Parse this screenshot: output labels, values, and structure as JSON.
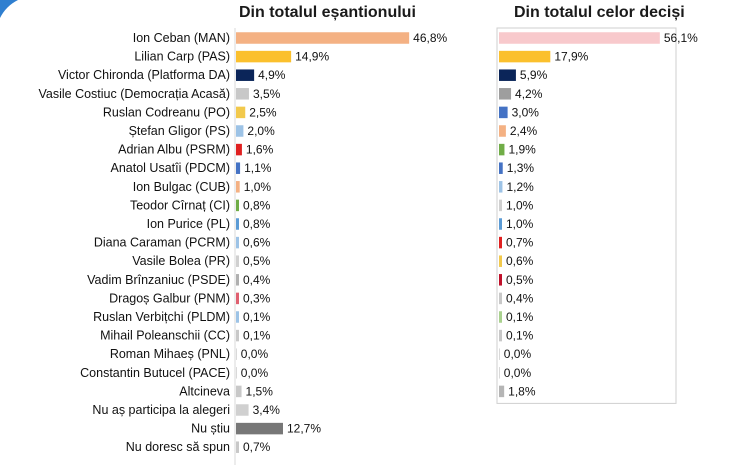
{
  "chart_data": [
    {
      "type": "bar",
      "orientation": "horizontal",
      "title": "Din totalul eșantionului",
      "xlim": [
        0,
        50
      ],
      "grid": false,
      "categories": [
        "Ion Ceban (MAN)",
        "Lilian Carp (PAS)",
        "Victor Chironda (Platforma DA)",
        "Vasile Costiuc (Democrația Acasă)",
        "Ruslan Codreanu (PO)",
        "Ștefan Gligor  (PS)",
        "Adrian Albu (PSRM)",
        "Anatol Usatîi (PDCM)",
        "Ion Bulgac (CUB)",
        "Teodor Cîrnaț (CI)",
        "Ion Purice (PL)",
        "Diana Caraman (PCRM)",
        "Vasile Bolea (PR)",
        "Vadim Brînzaniuc (PSDE)",
        "Dragoș Galbur (PNM)",
        "Ruslan Verbițchi (PLDM)",
        "Mihail Poleanschii (CC)",
        "Roman Mihaeș (PNL)",
        "Constantin Butucel  (PACE)",
        "Altcineva",
        "Nu aș participa la alegeri",
        "Nu știu",
        "Nu doresc să spun"
      ],
      "values": [
        46.8,
        14.9,
        4.9,
        3.5,
        2.5,
        2.0,
        1.6,
        1.1,
        1.0,
        0.8,
        0.8,
        0.6,
        0.5,
        0.4,
        0.3,
        0.1,
        0.1,
        0.0,
        0.0,
        1.5,
        3.4,
        12.7,
        0.7
      ],
      "value_labels": [
        "46,8%",
        "14,9%",
        "4,9%",
        "3,5%",
        "2,5%",
        "2,0%",
        "1,6%",
        "1,1%",
        "1,0%",
        "0,8%",
        "0,8%",
        "0,6%",
        "0,5%",
        "0,4%",
        "0,3%",
        "0,1%",
        "0,1%",
        "0,0%",
        "0,0%",
        "1,5%",
        "3,4%",
        "12,7%",
        "0,7%"
      ],
      "colors": [
        "#f4b183",
        "#fbc02d",
        "#0b2559",
        "#c8c8c8",
        "#f2c94c",
        "#9dc3e6",
        "#e02020",
        "#4472c4",
        "#f4b183",
        "#70ad47",
        "#5b9bd5",
        "#9dc3e6",
        "#d0d0d0",
        "#b0b0b0",
        "#e06070",
        "#9dc3e6",
        "#c8c8c8",
        "#d0d0d0",
        "#d0d0d0",
        "#c8c8c8",
        "#d0d0d0",
        "#777777",
        "#c8c8c8"
      ]
    },
    {
      "type": "bar",
      "orientation": "horizontal",
      "title": "Din totalul celor deciși",
      "xlim": [
        0,
        60
      ],
      "grid": false,
      "values": [
        56.1,
        17.9,
        5.9,
        4.2,
        3.0,
        2.4,
        1.9,
        1.3,
        1.2,
        1.0,
        1.0,
        0.7,
        0.6,
        0.5,
        0.4,
        0.1,
        0.1,
        0.0,
        0.0,
        1.8
      ],
      "value_labels": [
        "56,1%",
        "17,9%",
        "5,9%",
        "4,2%",
        "3,0%",
        "2,4%",
        "1,9%",
        "1,3%",
        "1,2%",
        "1,0%",
        "1,0%",
        "0,7%",
        "0,6%",
        "0,5%",
        "0,4%",
        "0,1%",
        "0,1%",
        "0,0%",
        "0,0%",
        "1,8%"
      ],
      "colors": [
        "#f8c9cc",
        "#fbc02d",
        "#0b2559",
        "#9e9e9e",
        "#4472c4",
        "#f4b183",
        "#70ad47",
        "#4472c4",
        "#9dc3e6",
        "#d0d0d0",
        "#5b9bd5",
        "#e02020",
        "#f2c94c",
        "#c0102a",
        "#c8c8c8",
        "#a9d18e",
        "#c8c8c8",
        "#d0d0d0",
        "#d0d0d0",
        "#b5b5b5"
      ]
    }
  ]
}
